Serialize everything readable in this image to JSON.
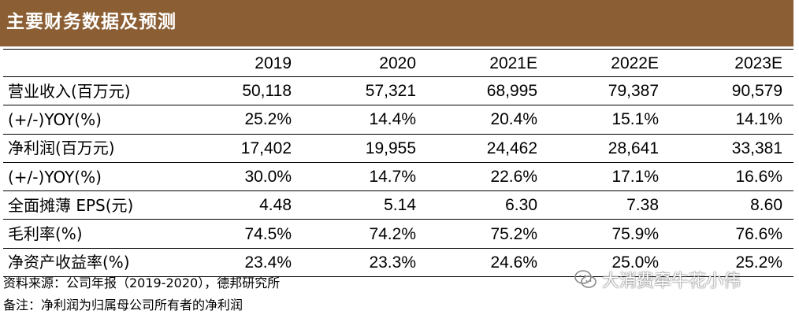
{
  "header": {
    "title": "主要财务数据及预测"
  },
  "table": {
    "columns": [
      "2019",
      "2020",
      "2021E",
      "2022E",
      "2023E"
    ],
    "rows": [
      {
        "label": "营业收入(百万元)",
        "values": [
          "50,118",
          "57,321",
          "68,995",
          "79,387",
          "90,579"
        ]
      },
      {
        "label": "(+/-)YOY(%)",
        "values": [
          "25.2%",
          "14.4%",
          "20.4%",
          "15.1%",
          "14.1%"
        ]
      },
      {
        "label": "净利润(百万元)",
        "values": [
          "17,402",
          "19,955",
          "24,462",
          "28,641",
          "33,381"
        ]
      },
      {
        "label": "(+/-)YOY(%)",
        "values": [
          "30.0%",
          "14.7%",
          "22.6%",
          "17.1%",
          "16.6%"
        ]
      },
      {
        "label": "全面摊薄 EPS(元)",
        "values": [
          "4.48",
          "5.14",
          "6.30",
          "7.38",
          "8.60"
        ]
      },
      {
        "label": "毛利率(%)",
        "values": [
          "74.5%",
          "74.2%",
          "75.2%",
          "75.9%",
          "76.6%"
        ]
      },
      {
        "label": "净资产收益率(%)",
        "values": [
          "23.4%",
          "23.3%",
          "24.6%",
          "25.0%",
          "25.2%"
        ]
      }
    ]
  },
  "footer": {
    "source": "资料来源：公司年报（2019-2020），德邦研究所",
    "note": "备注：净利润为归属母公司所有者的净利润"
  },
  "watermark": {
    "text": "大消费牵牛花小伟",
    "icon": "wechat-icon"
  }
}
